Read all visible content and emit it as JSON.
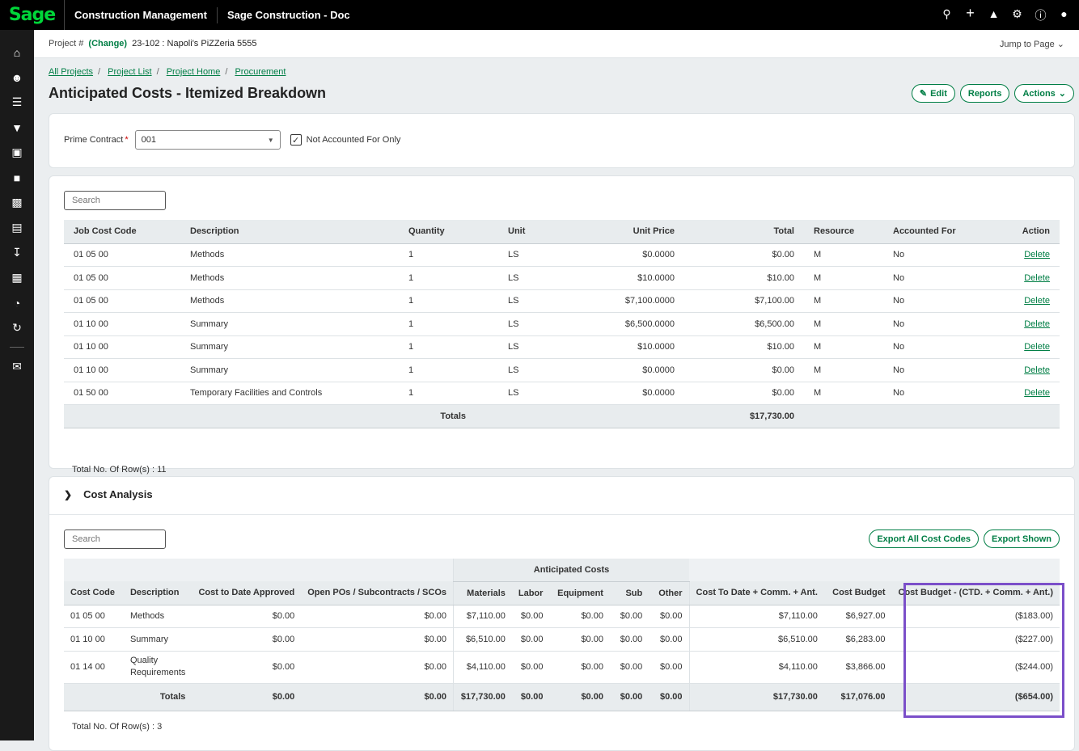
{
  "topbar": {
    "logo": "Sage",
    "app_name": "Construction Management",
    "company": "Sage Construction - Doc",
    "icons": [
      "search-icon",
      "plus-icon",
      "bell-icon",
      "gear-icon",
      "help-icon",
      "user-icon"
    ]
  },
  "sidebar": {
    "icons": [
      "home-icon",
      "people-icon",
      "database-icon",
      "filter-icon",
      "building-icon",
      "briefcase-icon",
      "truck-icon",
      "id-card-icon",
      "download-icon",
      "calculator-icon",
      "pie-chart-icon",
      "sync-icon",
      "feedback-icon"
    ]
  },
  "project_bar": {
    "label": "Project #",
    "change": "(Change)",
    "project": "23-102 : Napoli's PiZZeria 5555",
    "jump": "Jump to Page"
  },
  "breadcrumbs": [
    "All Projects",
    "Project List",
    "Project Home",
    "Procurement"
  ],
  "page_title": "Anticipated Costs - Itemized Breakdown",
  "header_buttons": {
    "edit": "Edit",
    "reports": "Reports",
    "actions": "Actions"
  },
  "filter": {
    "prime_contract_label": "Prime Contract",
    "required": "*",
    "prime_contract_value": "001",
    "not_accounted_label": "Not Accounted For Only",
    "not_accounted_checked": true
  },
  "items": {
    "search_placeholder": "Search",
    "headers": {
      "code": "Job Cost Code",
      "desc": "Description",
      "qty": "Quantity",
      "unit": "Unit",
      "price": "Unit Price",
      "total": "Total",
      "resource": "Resource",
      "accounted": "Accounted For",
      "action": "Action"
    },
    "rows": [
      {
        "code": "01 05 00",
        "desc": "Methods",
        "qty": "1",
        "unit": "LS",
        "price": "$0.0000",
        "total": "$0.00",
        "resource": "M",
        "accounted": "No",
        "action": "Delete"
      },
      {
        "code": "01 05 00",
        "desc": "Methods",
        "qty": "1",
        "unit": "LS",
        "price": "$10.0000",
        "total": "$10.00",
        "resource": "M",
        "accounted": "No",
        "action": "Delete"
      },
      {
        "code": "01 05 00",
        "desc": "Methods",
        "qty": "1",
        "unit": "LS",
        "price": "$7,100.0000",
        "total": "$7,100.00",
        "resource": "M",
        "accounted": "No",
        "action": "Delete"
      },
      {
        "code": "01 10 00",
        "desc": "Summary",
        "qty": "1",
        "unit": "LS",
        "price": "$6,500.0000",
        "total": "$6,500.00",
        "resource": "M",
        "accounted": "No",
        "action": "Delete"
      },
      {
        "code": "01 10 00",
        "desc": "Summary",
        "qty": "1",
        "unit": "LS",
        "price": "$10.0000",
        "total": "$10.00",
        "resource": "M",
        "accounted": "No",
        "action": "Delete"
      },
      {
        "code": "01 10 00",
        "desc": "Summary",
        "qty": "1",
        "unit": "LS",
        "price": "$0.0000",
        "total": "$0.00",
        "resource": "M",
        "accounted": "No",
        "action": "Delete"
      },
      {
        "code": "01 50 00",
        "desc": "Temporary Facilities and Controls",
        "qty": "1",
        "unit": "LS",
        "price": "$0.0000",
        "total": "$0.00",
        "resource": "M",
        "accounted": "No",
        "action": "Delete"
      }
    ],
    "totals_label": "Totals",
    "totals_value": "$17,730.00",
    "row_count": "Total No. Of Row(s) : 11"
  },
  "cost_analysis": {
    "title": "Cost Analysis",
    "search_placeholder": "Search",
    "export_all": "Export All Cost Codes",
    "export_shown": "Export Shown",
    "group_header": "Anticipated Costs",
    "headers": {
      "code": "Cost Code",
      "desc": "Description",
      "ctd": "Cost to Date Approved",
      "open": "Open POs / Subcontracts / SCOs",
      "materials": "Materials",
      "labor": "Labor",
      "equipment": "Equipment",
      "sub": "Sub",
      "other": "Other",
      "ctd_comm": "Cost To Date + Comm. + Ant.",
      "budget": "Cost Budget",
      "variance": "Cost Budget - (CTD. + Comm. + Ant.)"
    },
    "rows": [
      {
        "code": "01 05 00",
        "desc": "Methods",
        "desc2": "",
        "ctd": "$0.00",
        "open": "$0.00",
        "materials": "$7,110.00",
        "labor": "$0.00",
        "equipment": "$0.00",
        "sub": "$0.00",
        "other": "$0.00",
        "ctd_comm": "$7,110.00",
        "budget": "$6,927.00",
        "variance": "($183.00)"
      },
      {
        "code": "01 10 00",
        "desc": "Summary",
        "desc2": "",
        "ctd": "$0.00",
        "open": "$0.00",
        "materials": "$6,510.00",
        "labor": "$0.00",
        "equipment": "$0.00",
        "sub": "$0.00",
        "other": "$0.00",
        "ctd_comm": "$6,510.00",
        "budget": "$6,283.00",
        "variance": "($227.00)"
      },
      {
        "code": "01 14 00",
        "desc": "Quality",
        "desc2": "Requirements",
        "ctd": "$0.00",
        "open": "$0.00",
        "materials": "$4,110.00",
        "labor": "$0.00",
        "equipment": "$0.00",
        "sub": "$0.00",
        "other": "$0.00",
        "ctd_comm": "$4,110.00",
        "budget": "$3,866.00",
        "variance": "($244.00)"
      }
    ],
    "totals": {
      "label": "Totals",
      "ctd": "$0.00",
      "open": "$0.00",
      "materials": "$17,730.00",
      "labor": "$0.00",
      "equipment": "$0.00",
      "sub": "$0.00",
      "other": "$0.00",
      "ctd_comm": "$17,730.00",
      "budget": "$17,076.00",
      "variance": "($654.00)"
    },
    "row_count": "Total No. Of Row(s) : 3"
  },
  "colors": {
    "accent": "#007e45",
    "highlight": "#7b4fc9",
    "topbar": "#000000"
  }
}
